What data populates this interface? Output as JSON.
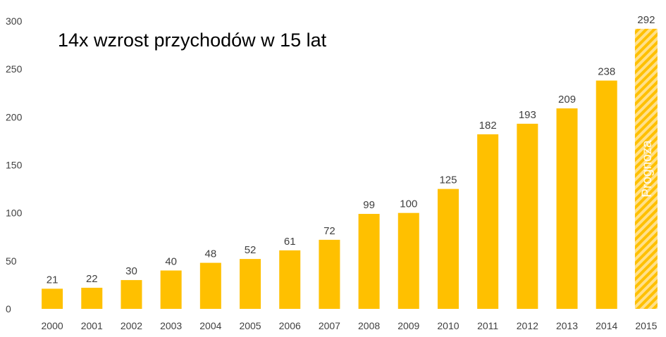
{
  "chart_data": {
    "type": "bar",
    "title": "14x wzrost przychodów w 15 lat",
    "xlabel": "",
    "ylabel": "",
    "categories": [
      "2000",
      "2001",
      "2002",
      "2003",
      "2004",
      "2005",
      "2006",
      "2007",
      "2008",
      "2009",
      "2010",
      "2011",
      "2012",
      "2013",
      "2014",
      "2015"
    ],
    "values": [
      21,
      22,
      30,
      40,
      48,
      52,
      61,
      72,
      99,
      100,
      125,
      182,
      193,
      209,
      238,
      292
    ],
    "ylim": [
      0,
      300
    ],
    "yticks": [
      0,
      50,
      100,
      150,
      200,
      250,
      300
    ],
    "grid": false,
    "legend": "none",
    "forecast_category": "2015",
    "forecast_label": "Prognoza",
    "bar_color": "#FFC000",
    "forecast_hatch_color": "#FFD966",
    "text_color": "#404040"
  }
}
